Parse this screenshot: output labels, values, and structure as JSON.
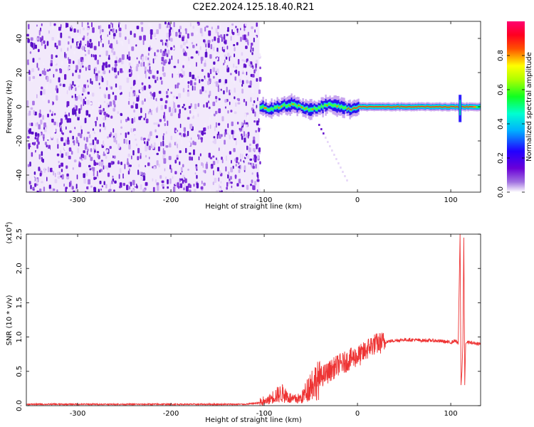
{
  "figure": {
    "title": "C2E2.2024.125.18.40.R21"
  },
  "chart_data": [
    {
      "type": "heatmap",
      "xlabel": "Height of straight line (km)",
      "ylabel": "Frequency (Hz)",
      "xlim": [
        -355,
        132
      ],
      "ylim": [
        -50,
        50
      ],
      "xticks": [
        -300,
        -200,
        -100,
        0,
        100
      ],
      "yticks": [
        -40,
        -20,
        0,
        20,
        40
      ],
      "noise_region_x": [
        -355,
        -105
      ],
      "signal_band_x": [
        -105,
        132
      ],
      "signal_center_hz": 0,
      "colorbar": {
        "label": "Normalized spectral amplitude",
        "range": [
          0,
          1
        ],
        "ticks": [
          "0.0",
          "0.2",
          "0.4",
          "0.6",
          "0.8"
        ],
        "colormap": [
          "#ffffff",
          "#7b00d4",
          "#2a00ff",
          "#00ddff",
          "#00ff3a",
          "#ffff00",
          "#ff0000",
          "#ff0070"
        ]
      }
    },
    {
      "type": "line",
      "xlabel": "Height of straight line (km)",
      "ylabel": "SNR (10 * v/v)",
      "scale_label": "(x10",
      "scale_exp": "4",
      "scale_close": ")",
      "xlim": [
        -355,
        132
      ],
      "ylim": [
        0,
        2.5
      ],
      "xticks": [
        -300,
        -200,
        -100,
        0,
        100
      ],
      "yticks": [
        "0.0",
        "0.5",
        "1.0",
        "1.5",
        "2.0",
        "2.5"
      ],
      "series": [
        {
          "color": "#ee3333",
          "x": [
            -355,
            -120,
            -100,
            -95,
            -90,
            -85,
            -80,
            -75,
            -70,
            -60,
            -50,
            -45,
            -40,
            -35,
            -30,
            -25,
            -20,
            -15,
            -10,
            -5,
            0,
            5,
            10,
            15,
            20,
            30,
            40,
            50,
            60,
            70,
            80,
            90,
            100,
            105,
            108,
            110,
            111,
            112,
            113,
            114,
            115,
            116,
            117,
            120,
            132
          ],
          "values": [
            0.02,
            0.02,
            0.05,
            0.1,
            0.15,
            0.18,
            0.2,
            0.15,
            0.1,
            0.12,
            0.35,
            0.4,
            0.42,
            0.45,
            0.5,
            0.55,
            0.6,
            0.62,
            0.66,
            0.7,
            0.72,
            0.75,
            0.82,
            0.88,
            0.9,
            0.93,
            0.95,
            0.96,
            0.96,
            0.95,
            0.95,
            0.94,
            0.92,
            0.95,
            0.9,
            2.5,
            0.3,
            0.5,
            0.9,
            2.45,
            0.3,
            0.9,
            0.92,
            0.92,
            0.9
          ]
        }
      ]
    }
  ]
}
